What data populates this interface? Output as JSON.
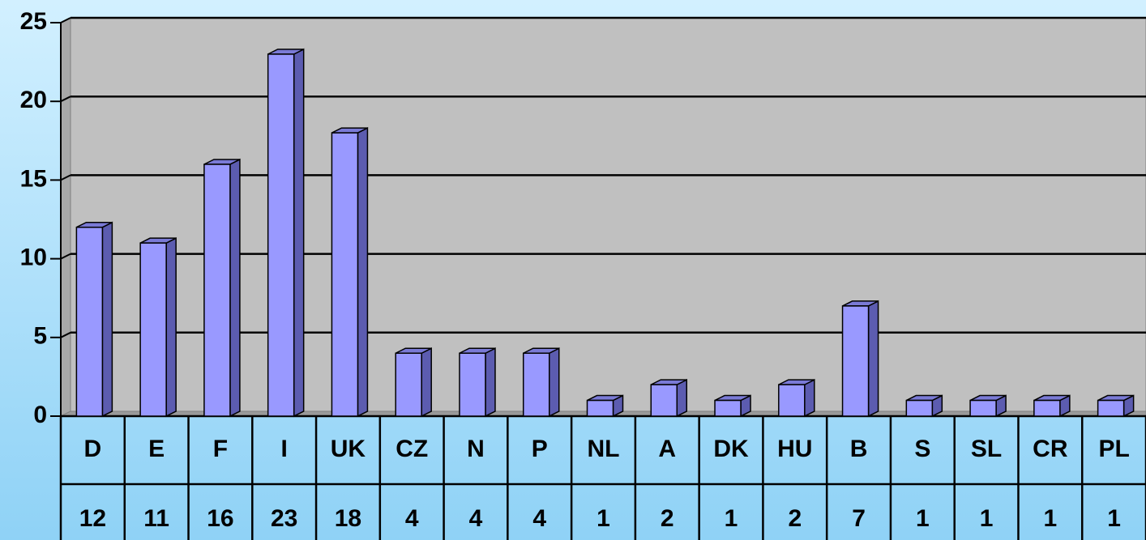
{
  "chart_data": {
    "type": "bar",
    "categories": [
      "D",
      "E",
      "F",
      "I",
      "UK",
      "CZ",
      "N",
      "P",
      "NL",
      "A",
      "DK",
      "HU",
      "B",
      "S",
      "SL",
      "CR",
      "PL"
    ],
    "values": [
      12,
      11,
      16,
      23,
      18,
      4,
      4,
      4,
      1,
      2,
      1,
      2,
      7,
      1,
      1,
      1,
      1
    ],
    "color": "#9999ff",
    "ylim": [
      0,
      25
    ],
    "yticks": [
      0,
      5,
      10,
      15,
      20,
      25
    ],
    "grid": true
  }
}
